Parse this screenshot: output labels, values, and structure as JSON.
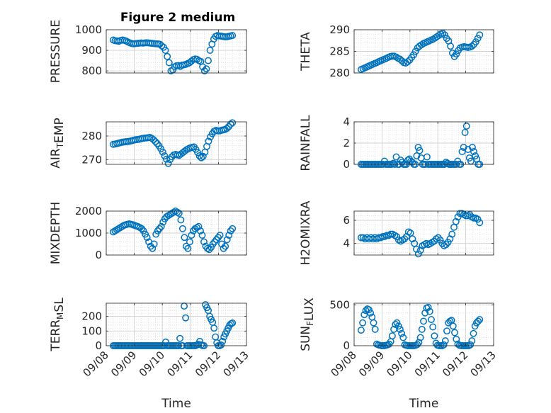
{
  "chart_data": [
    {
      "type": "scatter",
      "title": "Figure 2 medium",
      "ylabel_parts": [
        {
          "t": "PRESSURE"
        }
      ],
      "xlabel": "",
      "ylim": [
        790,
        1000
      ],
      "yticks": [
        800,
        900,
        1000
      ],
      "y": [
        950,
        947,
        946,
        944,
        948,
        950,
        948,
        945,
        940,
        936,
        933,
        932,
        933,
        934,
        935,
        936,
        935,
        936,
        937,
        936,
        935,
        934,
        933,
        932,
        931,
        930,
        922,
        915,
        900,
        870,
        840,
        800,
        805,
        820,
        825,
        826,
        822,
        828,
        830,
        832,
        836,
        840,
        848,
        855,
        858,
        856,
        850,
        846,
        820,
        800,
        810,
        850,
        900,
        930,
        955,
        968,
        972,
        970,
        969,
        967,
        966,
        966,
        968,
        970,
        972
      ]
    },
    {
      "type": "scatter",
      "title": "",
      "ylabel_parts": [
        {
          "t": "THETA"
        }
      ],
      "xlabel": "",
      "ylim": [
        280,
        290
      ],
      "yticks": [
        280,
        285,
        290
      ],
      "y": [
        280.8,
        281.0,
        281.2,
        281.4,
        281.6,
        281.8,
        282.0,
        282.2,
        282.4,
        282.6,
        282.8,
        283.0,
        283.2,
        283.4,
        283.6,
        283.8,
        283.9,
        283.9,
        283.7,
        283.4,
        283.2,
        282.8,
        282.4,
        282.3,
        282.6,
        283.0,
        283.6,
        284.2,
        285.0,
        285.8,
        286.2,
        286.5,
        286.8,
        287.0,
        287.2,
        287.4,
        287.6,
        287.8,
        288.1,
        288.4,
        288.7,
        289.0,
        289.2,
        288.8,
        288.0,
        287.4,
        286.2,
        284.6,
        283.8,
        284.4,
        285.2,
        285.8,
        286.0,
        286.1,
        286.0,
        285.9,
        286.0,
        286.2,
        286.6,
        287.2,
        288.0,
        288.8
      ]
    },
    {
      "type": "scatter",
      "title": "",
      "ylabel_parts": [
        {
          "t": "AIR"
        },
        {
          "t": "T",
          "sub": true
        },
        {
          "t": "EMP"
        }
      ],
      "xlabel": "",
      "ylim": [
        268,
        286
      ],
      "yticks": [
        270,
        280
      ],
      "y": [
        276.5,
        276.6,
        276.8,
        277.0,
        277.2,
        277.4,
        277.5,
        277.6,
        277.7,
        277.8,
        278.0,
        278.2,
        278.4,
        278.5,
        278.6,
        278.8,
        279.0,
        279.1,
        279.2,
        279.3,
        279.4,
        279.0,
        278.4,
        277.6,
        276.8,
        275.8,
        274.6,
        273.2,
        271.6,
        270.2,
        268.4,
        270.0,
        271.2,
        272.0,
        272.2,
        272.0,
        271.8,
        272.4,
        273.0,
        273.6,
        274.2,
        274.6,
        275.0,
        275.2,
        275.4,
        274.4,
        273.0,
        271.6,
        270.8,
        271.4,
        273.2,
        275.6,
        277.8,
        279.6,
        281.0,
        282.0,
        282.4,
        282.2,
        282.2,
        282.4,
        282.6,
        282.8,
        283.2,
        284.0,
        285.0,
        285.6
      ]
    },
    {
      "type": "scatter",
      "title": "",
      "ylabel_parts": [
        {
          "t": "RAINFALL"
        }
      ],
      "xlabel": "",
      "ylim": [
        0,
        4
      ],
      "yticks": [
        0,
        2,
        4
      ],
      "y": [
        0,
        0,
        0,
        0,
        0,
        0,
        0,
        0,
        0,
        0,
        0,
        0,
        0,
        0,
        0,
        0,
        0.3,
        0,
        0,
        0,
        0,
        0,
        0.1,
        0,
        0.7,
        0,
        0,
        0.4,
        0.2,
        0,
        0,
        0,
        0.4,
        0.5,
        0.3,
        0.2,
        0,
        0,
        0.8,
        1.6,
        1.3,
        0.6,
        0,
        0,
        0,
        0.7,
        0,
        0,
        0,
        0,
        0,
        0,
        0,
        0,
        0,
        0,
        0,
        0,
        0.2,
        0.1,
        0,
        0,
        0,
        0,
        0,
        0,
        0.3,
        0,
        0,
        1.2,
        1.6,
        3.0,
        3.6,
        1.4,
        0.6,
        0.3,
        1.6,
        1.2,
        0.8,
        0.5,
        0,
        0
      ]
    },
    {
      "type": "scatter",
      "title": "",
      "ylabel_parts": [
        {
          "t": "MIXDEPTH"
        }
      ],
      "xlabel": "",
      "ylim": [
        0,
        2000
      ],
      "yticks": [
        0,
        1000,
        2000
      ],
      "y": [
        1050,
        1100,
        1150,
        1200,
        1250,
        1300,
        1350,
        1380,
        1400,
        1420,
        1400,
        1380,
        1350,
        1320,
        1290,
        1250,
        1200,
        1100,
        950,
        800,
        600,
        400,
        300,
        500,
        950,
        1100,
        1200,
        1300,
        1500,
        1650,
        1750,
        1800,
        1850,
        1900,
        1950,
        2000,
        1950,
        1900,
        1600,
        1200,
        800,
        400,
        300,
        600,
        900,
        1100,
        1200,
        1250,
        1300,
        1100,
        900,
        600,
        400,
        300,
        250,
        350,
        500,
        600,
        700,
        800,
        900,
        500,
        300,
        400,
        700,
        900,
        1100,
        1200
      ]
    },
    {
      "type": "scatter",
      "title": "",
      "ylabel_parts": [
        {
          "t": "H2OMIXRA"
        }
      ],
      "xlabel": "",
      "ylim": [
        3,
        6.8
      ],
      "yticks": [
        4,
        6
      ],
      "y": [
        4.5,
        4.5,
        4.4,
        4.5,
        4.4,
        4.5,
        4.4,
        4.5,
        4.4,
        4.5,
        4.5,
        4.6,
        4.6,
        4.7,
        4.7,
        4.8,
        4.8,
        4.7,
        4.6,
        4.3,
        4.2,
        4.3,
        4.4,
        4.6,
        5.0,
        4.9,
        4.4,
        4.0,
        3.5,
        3.1,
        3.4,
        3.8,
        3.9,
        4.0,
        3.9,
        4.0,
        4.1,
        4.2,
        4.4,
        4.5,
        4.3,
        4.0,
        3.8,
        3.9,
        4.1,
        4.4,
        4.8,
        5.4,
        5.9,
        6.3,
        6.6,
        6.6,
        6.5,
        6.4,
        6.4,
        6.5,
        6.3,
        6.2,
        6.2,
        6.1,
        5.8
      ]
    },
    {
      "type": "scatter",
      "title": "",
      "ylabel_parts": [
        {
          "t": "TERR"
        },
        {
          "t": "M",
          "sub": true
        },
        {
          "t": "SL"
        }
      ],
      "xlabel": "Time",
      "ylim": [
        0,
        290
      ],
      "yticks": [
        0,
        100,
        200
      ],
      "y": [
        0,
        0,
        0,
        0,
        0,
        0,
        0,
        0,
        0,
        0,
        0,
        0,
        0,
        0,
        0,
        0,
        0,
        0,
        0,
        0,
        0,
        0,
        0,
        0,
        0,
        0,
        0,
        0,
        0,
        0,
        0,
        0,
        0,
        0,
        0,
        0,
        0,
        25,
        0,
        0,
        0,
        0,
        0,
        0,
        0,
        0,
        0,
        50,
        0,
        0,
        270,
        190,
        0,
        0,
        0,
        0,
        0,
        0,
        0,
        5,
        10,
        30,
        5,
        0,
        0,
        280,
        260,
        240,
        200,
        180,
        160,
        120,
        60,
        20,
        0,
        0,
        5,
        30,
        60,
        80,
        100,
        120,
        140,
        150,
        155
      ]
    },
    {
      "type": "scatter",
      "title": "",
      "ylabel_parts": [
        {
          "t": "SUN"
        },
        {
          "t": "F",
          "sub": true
        },
        {
          "t": "LUX"
        }
      ],
      "xlabel": "Time",
      "ylim": [
        0,
        520
      ],
      "yticks": [
        0,
        500
      ],
      "y": [
        190,
        280,
        380,
        430,
        450,
        440,
        400,
        350,
        280,
        200,
        20,
        10,
        5,
        0,
        0,
        0,
        5,
        10,
        20,
        50,
        120,
        200,
        260,
        280,
        240,
        200,
        150,
        100,
        10,
        5,
        0,
        0,
        0,
        0,
        0,
        5,
        15,
        40,
        100,
        200,
        300,
        400,
        460,
        470,
        420,
        320,
        230,
        120,
        30,
        5,
        0,
        0,
        0,
        10,
        60,
        180,
        280,
        300,
        310,
        240,
        160,
        80,
        20,
        5,
        0,
        0,
        0,
        0,
        0,
        0,
        10,
        60,
        150,
        240,
        280,
        300,
        320
      ]
    }
  ],
  "x_axis": {
    "ticklabels": [
      "09/08",
      "09/09",
      "09/10",
      "09/11",
      "09/12",
      "09/13"
    ],
    "xlim": [
      "09/08",
      "09/13"
    ],
    "data_start": "09/08 06:00",
    "data_end": "09/12 12:00"
  },
  "colors": {
    "marker": "#0072BD",
    "grid": "#d0d0d0",
    "axis": "#262626"
  }
}
